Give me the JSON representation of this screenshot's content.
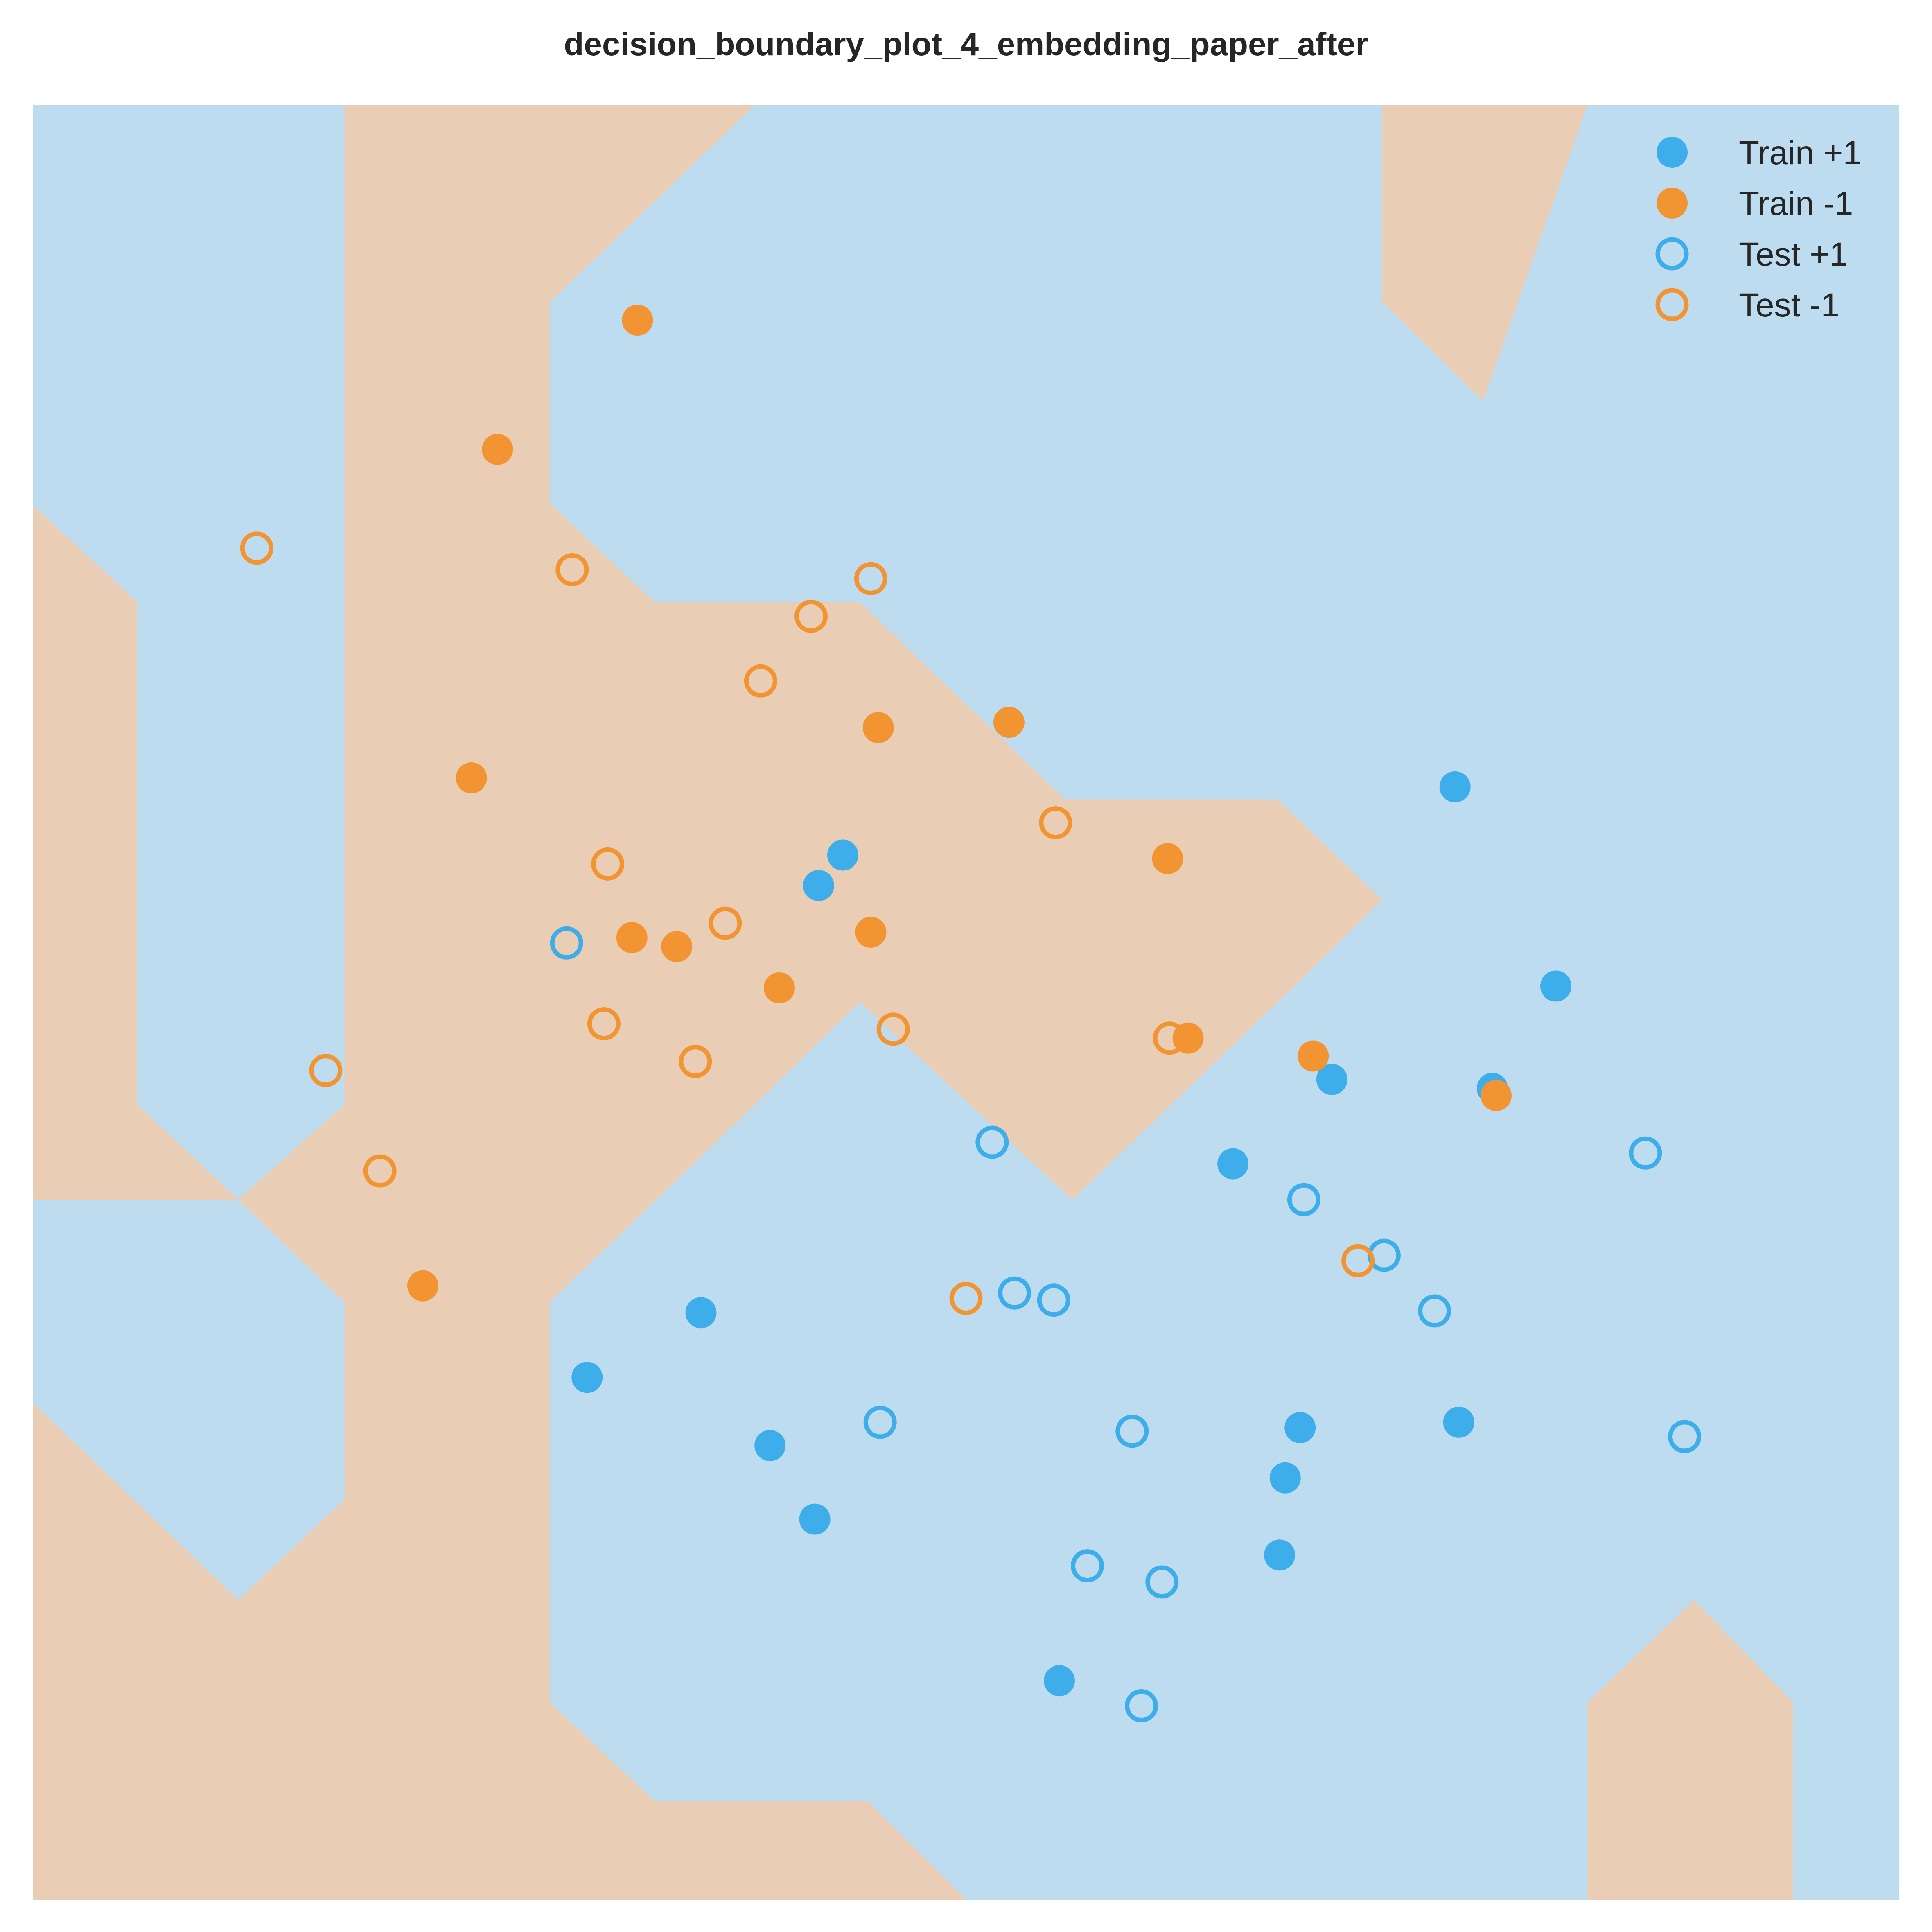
{
  "title": "decision_boundary_plot_4_embedding_paper_after",
  "colors": {
    "positive": "#3daee9",
    "negative": "#f39432",
    "region_positive": "#bedcef",
    "region_negative": "#e9cdb4"
  },
  "chart_data": {
    "type": "scatter",
    "title": "decision_boundary_plot_4_embedding_paper_after",
    "xlabel": "",
    "ylabel": "",
    "xlim": [
      0,
      1
    ],
    "ylim": [
      0,
      1
    ],
    "grid": false,
    "axis_visible": false,
    "legend_position": "top-right",
    "decision_regions": {
      "background_class": "+1",
      "negative_class_polygons": [
        [
          [
            0.167,
            1.0
          ],
          [
            0.387,
            1.0
          ],
          [
            0.277,
            0.89
          ],
          [
            0.277,
            0.778
          ],
          [
            0.333,
            0.723
          ],
          [
            0.443,
            0.723
          ],
          [
            0.553,
            0.613
          ],
          [
            0.667,
            0.613
          ],
          [
            0.723,
            0.557
          ],
          [
            0.667,
            0.5
          ],
          [
            0.557,
            0.39
          ],
          [
            0.443,
            0.5
          ],
          [
            0.387,
            0.443
          ],
          [
            0.277,
            0.333
          ],
          [
            0.277,
            0.11
          ],
          [
            0.333,
            0.055
          ],
          [
            0.447,
            0.055
          ],
          [
            0.5,
            0.0
          ],
          [
            0.056,
            0.0
          ],
          [
            0.11,
            0.055
          ],
          [
            0.167,
            0.0
          ],
          [
            0.0,
            0.0
          ],
          [
            0.0,
            0.277
          ],
          [
            0.11,
            0.167
          ],
          [
            0.167,
            0.223
          ],
          [
            0.167,
            0.333
          ],
          [
            0.11,
            0.39
          ],
          [
            0.0,
            0.39
          ],
          [
            0.0,
            0.777
          ],
          [
            0.056,
            0.723
          ],
          [
            0.056,
            0.443
          ],
          [
            0.11,
            0.39
          ],
          [
            0.167,
            0.443
          ],
          [
            0.167,
            1.0
          ]
        ],
        [
          [
            0.723,
            1.0
          ],
          [
            0.833,
            1.0
          ],
          [
            0.777,
            0.835
          ],
          [
            0.723,
            0.89
          ]
        ],
        [
          [
            0.833,
            0.0
          ],
          [
            0.943,
            0.0
          ],
          [
            0.943,
            0.11
          ],
          [
            0.89,
            0.167
          ],
          [
            0.833,
            0.11
          ]
        ]
      ]
    },
    "series": [
      {
        "name": "Train +1",
        "marker": "filled",
        "color": "#3daee9",
        "points": [
          [
            0.762,
            0.62
          ],
          [
            0.816,
            0.509
          ],
          [
            0.696,
            0.457
          ],
          [
            0.782,
            0.452
          ],
          [
            0.434,
            0.582
          ],
          [
            0.421,
            0.565
          ],
          [
            0.643,
            0.41
          ],
          [
            0.358,
            0.327
          ],
          [
            0.297,
            0.291
          ],
          [
            0.395,
            0.253
          ],
          [
            0.679,
            0.263
          ],
          [
            0.764,
            0.266
          ],
          [
            0.671,
            0.235
          ],
          [
            0.419,
            0.212
          ],
          [
            0.668,
            0.192
          ],
          [
            0.55,
            0.122
          ]
        ]
      },
      {
        "name": "Train -1",
        "marker": "filled",
        "color": "#f39432",
        "points": [
          [
            0.324,
            0.88
          ],
          [
            0.249,
            0.808
          ],
          [
            0.235,
            0.625
          ],
          [
            0.453,
            0.653
          ],
          [
            0.523,
            0.656
          ],
          [
            0.608,
            0.58
          ],
          [
            0.321,
            0.536
          ],
          [
            0.345,
            0.531
          ],
          [
            0.449,
            0.539
          ],
          [
            0.4,
            0.508
          ],
          [
            0.619,
            0.48
          ],
          [
            0.686,
            0.47
          ],
          [
            0.784,
            0.448
          ],
          [
            0.209,
            0.342
          ]
        ]
      },
      {
        "name": "Test +1",
        "marker": "hollow",
        "color": "#3daee9",
        "points": [
          [
            0.286,
            0.533
          ],
          [
            0.514,
            0.422
          ],
          [
            0.681,
            0.39
          ],
          [
            0.724,
            0.359
          ],
          [
            0.751,
            0.328
          ],
          [
            0.864,
            0.416
          ],
          [
            0.526,
            0.338
          ],
          [
            0.547,
            0.334
          ],
          [
            0.454,
            0.266
          ],
          [
            0.589,
            0.261
          ],
          [
            0.885,
            0.258
          ],
          [
            0.565,
            0.186
          ],
          [
            0.605,
            0.177
          ],
          [
            0.594,
            0.108
          ]
        ]
      },
      {
        "name": "Test -1",
        "marker": "hollow",
        "color": "#f39432",
        "points": [
          [
            0.12,
            0.753
          ],
          [
            0.289,
            0.741
          ],
          [
            0.449,
            0.736
          ],
          [
            0.417,
            0.715
          ],
          [
            0.39,
            0.679
          ],
          [
            0.548,
            0.6
          ],
          [
            0.308,
            0.577
          ],
          [
            0.371,
            0.544
          ],
          [
            0.609,
            0.48
          ],
          [
            0.306,
            0.488
          ],
          [
            0.461,
            0.485
          ],
          [
            0.355,
            0.467
          ],
          [
            0.157,
            0.462
          ],
          [
            0.186,
            0.406
          ],
          [
            0.5,
            0.335
          ],
          [
            0.71,
            0.356
          ]
        ]
      }
    ]
  }
}
